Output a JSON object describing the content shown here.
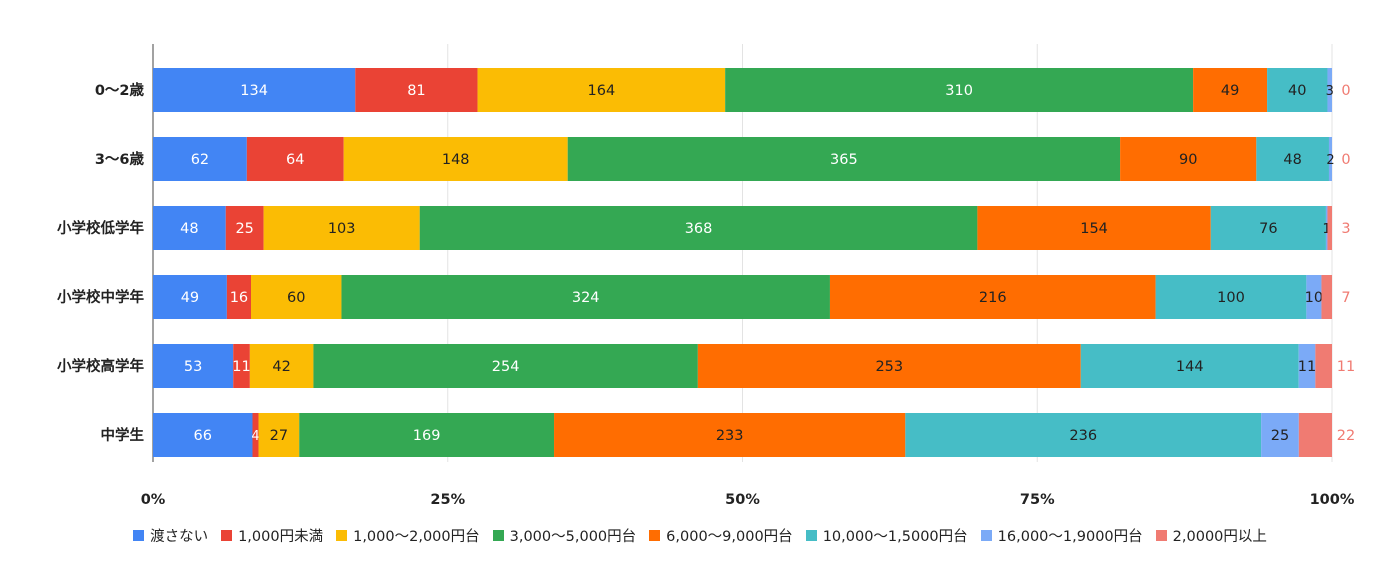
{
  "chart_data": {
    "type": "bar",
    "orientation": "horizontal",
    "stacked": "100%",
    "categories": [
      "0〜2歳",
      "3〜6歳",
      "小学校低学年",
      "小学校中学年",
      "小学校高学年",
      "中学生"
    ],
    "series": [
      {
        "name": "渡さない",
        "color": "#4285f4",
        "values": [
          134,
          62,
          48,
          49,
          53,
          66
        ]
      },
      {
        "name": "1,000円未満",
        "color": "#ea4335",
        "values": [
          81,
          64,
          25,
          16,
          11,
          4
        ]
      },
      {
        "name": "1,000〜2,000円台",
        "color": "#fbbc04",
        "values": [
          164,
          148,
          103,
          60,
          42,
          27
        ]
      },
      {
        "name": "3,000〜5,000円台",
        "color": "#34a853",
        "values": [
          310,
          365,
          368,
          324,
          254,
          169
        ]
      },
      {
        "name": "6,000〜9,000円台",
        "color": "#ff6d01",
        "values": [
          49,
          90,
          154,
          216,
          253,
          233
        ]
      },
      {
        "name": "10,000〜1,5000円台",
        "color": "#46bdc6",
        "values": [
          40,
          48,
          76,
          100,
          144,
          236
        ]
      },
      {
        "name": "16,000〜1,9000円台",
        "color": "#7baaf7",
        "values": [
          3,
          2,
          1,
          10,
          11,
          25
        ]
      },
      {
        "name": "2,0000円以上",
        "color": "#f07b72",
        "values": [
          0,
          0,
          3,
          7,
          11,
          22
        ]
      }
    ],
    "x_ticks": [
      "0%",
      "25%",
      "50%",
      "75%",
      "100%"
    ],
    "xlim": [
      0,
      100
    ],
    "grid": true,
    "legend_position": "bottom"
  }
}
